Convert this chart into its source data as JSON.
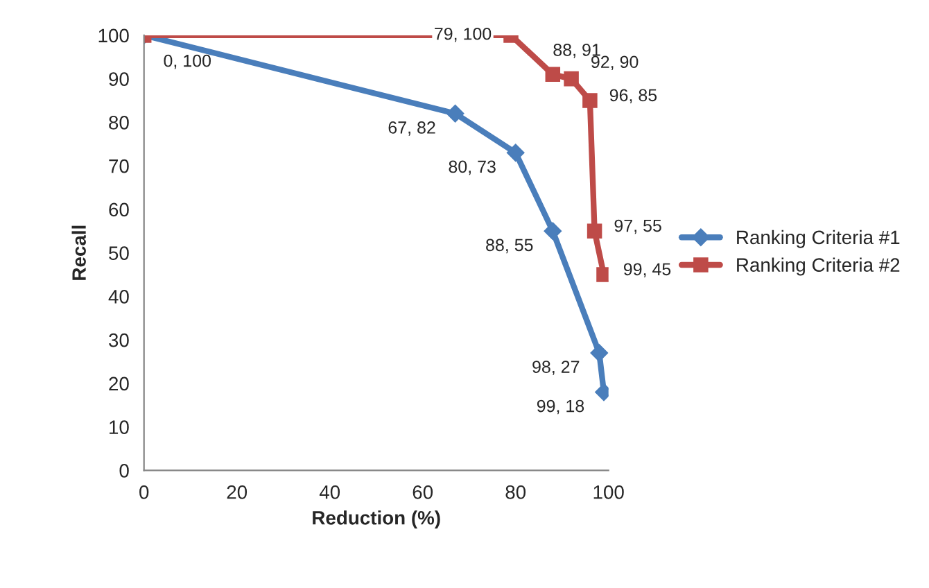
{
  "chart_data": {
    "type": "line",
    "xlabel": "Reduction (%)",
    "ylabel": "Recall",
    "xlim": [
      0,
      100
    ],
    "xticks": [
      0,
      20,
      40,
      60,
      80,
      100
    ],
    "ylim": [
      0,
      100
    ],
    "yticks": [
      0,
      10,
      20,
      30,
      40,
      50,
      60,
      70,
      80,
      90,
      100
    ],
    "grid": false,
    "legend": "right",
    "line_style": "solid",
    "series": [
      {
        "name": "Ranking Criteria #1",
        "color": "#4a7ebb",
        "marker": "diamond",
        "x": [
          0,
          67,
          80,
          88,
          98,
          99
        ],
        "values": [
          100,
          82,
          73,
          55,
          27,
          18
        ],
        "value_labels": [
          "0, 100",
          "67, 82",
          "80, 73",
          "88, 55",
          "98, 27",
          "99, 18"
        ]
      },
      {
        "name": "Ranking Criteria #2",
        "color": "#be4b48",
        "marker": "square",
        "x": [
          0,
          79,
          88,
          92,
          96,
          97,
          99
        ],
        "values": [
          100,
          100,
          91,
          90,
          85,
          55,
          45
        ],
        "value_labels": [
          null,
          "79, 100",
          "88, 91",
          "92, 90",
          "96, 85",
          "97, 55",
          "99, 45"
        ]
      }
    ]
  }
}
